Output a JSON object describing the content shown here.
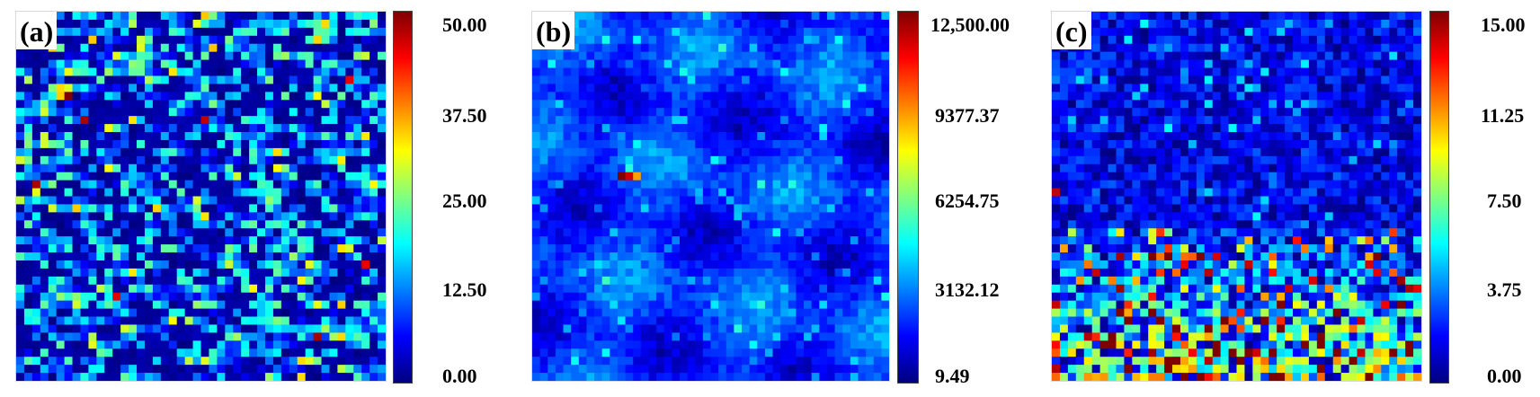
{
  "colors": {
    "colormap": [
      "#00007f",
      "#0000ff",
      "#0080ff",
      "#00ffff",
      "#80ff80",
      "#ffff00",
      "#ff8000",
      "#ff0000",
      "#7f0000"
    ]
  },
  "chart_data": [
    {
      "type": "heatmap",
      "panel_label": "(a)",
      "grid": {
        "rows": 46,
        "cols": 46
      },
      "value_range": [
        0,
        50
      ],
      "colorbar": {
        "ticks": [
          50,
          37.5,
          25,
          12.5,
          0
        ],
        "tick_labels": [
          "50.00",
          "37.50",
          "25.00",
          "12.50",
          "0.00"
        ]
      },
      "distribution": "sparse noise; ~55% of cells near 0 with scattered horizontal streaks of 8–30 and isolated peaks up to 50",
      "notable_peaks": [
        {
          "row": 10,
          "col": 6,
          "value": 50
        },
        {
          "row": 13,
          "col": 8,
          "value": 48
        },
        {
          "row": 8,
          "col": 41,
          "value": 45
        },
        {
          "row": 13,
          "col": 23,
          "value": 47
        },
        {
          "row": 21,
          "col": 2,
          "value": 48
        },
        {
          "row": 35,
          "col": 12,
          "value": 45
        },
        {
          "row": 31,
          "col": 43,
          "value": 45
        },
        {
          "row": 40,
          "col": 37,
          "value": 48
        }
      ]
    },
    {
      "type": "heatmap",
      "panel_label": "(b)",
      "grid": {
        "rows": 46,
        "cols": 46
      },
      "value_range": [
        9.49,
        12500
      ],
      "colorbar": {
        "ticks": [
          12500,
          9377.37,
          6254.75,
          3132.12,
          9.49
        ],
        "tick_labels": [
          "12,500.00",
          "9377.37",
          "6254.75",
          "3132.12",
          "9.49"
        ]
      },
      "distribution": "smooth low field mostly 1500–3500 with brighter lobes up to ~5500 and a single hot spot near 12,500",
      "notable_peaks": [
        {
          "row": 20,
          "col": 11,
          "value": 12500
        },
        {
          "row": 20,
          "col": 12,
          "value": 11500
        },
        {
          "row": 20,
          "col": 13,
          "value": 9000
        }
      ]
    },
    {
      "type": "heatmap",
      "panel_label": "(c)",
      "grid": {
        "rows": 46,
        "cols": 46
      },
      "value_range": [
        0,
        15
      ],
      "colorbar": {
        "ticks": [
          15,
          11.25,
          7.5,
          3.75,
          0
        ],
        "tick_labels": [
          "15.00",
          "11.25",
          "7.50",
          "3.75",
          "0.00"
        ]
      },
      "distribution": "top ~28 rows low (0–4); bottom rows increasingly noisy (2–15) with many red peaks",
      "notable_peaks": [
        {
          "row": 22,
          "col": 0,
          "value": 14
        },
        {
          "row": 30,
          "col": 12,
          "value": 15
        },
        {
          "row": 30,
          "col": 18,
          "value": 15
        },
        {
          "row": 31,
          "col": 24,
          "value": 14
        },
        {
          "row": 37,
          "col": 12,
          "value": 15
        },
        {
          "row": 40,
          "col": 7,
          "value": 15
        },
        {
          "row": 41,
          "col": 33,
          "value": 15
        },
        {
          "row": 42,
          "col": 27,
          "value": 15
        }
      ]
    }
  ]
}
